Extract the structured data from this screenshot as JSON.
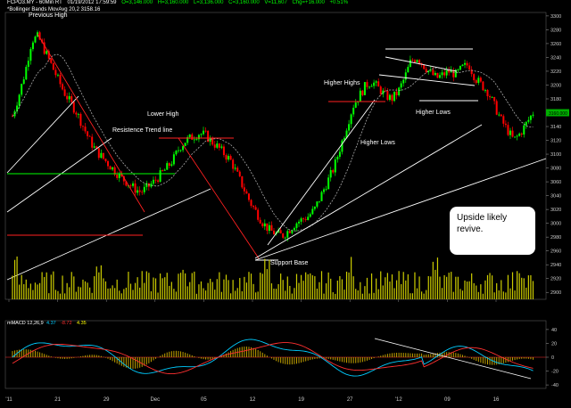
{
  "header": {
    "symbol": "FCPO3.MY - 60Min RT",
    "datetime": "01/19/2012  17:59:59",
    "open": "O=3,146.000",
    "high": "H=3,160.000",
    "low": "L=3,136.000",
    "close": "C=3,160.000",
    "volume": "V=11,607",
    "change": "Chg=+16.000",
    "change_pct": "+0.51%",
    "bollinger": "*Bollinger Bands  MovAvg 20,2  3158.16",
    "previous_high_label": "Previous High"
  },
  "annotations": {
    "lower_high": "Lower High",
    "resistance": "Resistence Trend line",
    "support_base": "Support Base",
    "higher_highs": "Higher Highs",
    "higher_lows_1": "Higher Lows",
    "higher_lows_2": "Higher Lows",
    "note": "Upside likely revive."
  },
  "macd_header": {
    "label": "mMACD 12,26,9",
    "v1": "4.37",
    "v2": "-8.72",
    "v3": "4.35"
  },
  "colors": {
    "up": "#00ff00",
    "down": "#ff0000",
    "trend_line": "#ffffff",
    "resistance_line": "#ff2020",
    "support_line": "#00ff00",
    "volume": "#cccc00",
    "macd_line": "#00ccff",
    "signal_line": "#ff3030"
  },
  "chart_data": [
    {
      "type": "candlestick",
      "y_ticks": [
        2900,
        2920,
        2940,
        2960,
        2980,
        3000,
        3020,
        3040,
        3060,
        3080,
        3100,
        3120,
        3140,
        3160,
        3180,
        3200,
        3220,
        3240,
        3260,
        3280,
        3300
      ],
      "ylim": [
        2890,
        3305
      ],
      "x_ticks": [
        "'11",
        "21",
        "29",
        "Dec",
        "05",
        "12",
        "19",
        "27",
        "'12",
        "09",
        "16"
      ],
      "last_price": 3160,
      "price_path": [
        3155,
        3185,
        3220,
        3265,
        3270,
        3250,
        3230,
        3210,
        3190,
        3175,
        3160,
        3140,
        3120,
        3105,
        3095,
        3085,
        3075,
        3065,
        3058,
        3050,
        3045,
        3052,
        3060,
        3070,
        3080,
        3092,
        3110,
        3120,
        3125,
        3130,
        3128,
        3118,
        3110,
        3100,
        3090,
        3070,
        3050,
        3030,
        3015,
        3000,
        2990,
        2985,
        2982,
        2990,
        3000,
        3005,
        3010,
        3020,
        3040,
        3060,
        3080,
        3110,
        3140,
        3170,
        3185,
        3200,
        3205,
        3195,
        3185,
        3180,
        3190,
        3210,
        3235,
        3240,
        3228,
        3218,
        3210,
        3215,
        3220,
        3215,
        3225,
        3230,
        3210,
        3200,
        3190,
        3170,
        3150,
        3135,
        3120,
        3130,
        3145,
        3160
      ]
    },
    {
      "type": "bar",
      "name": "volume",
      "y_ticks": [
        2900
      ]
    },
    {
      "type": "line",
      "name": "MACD",
      "y_ticks": [
        40,
        20,
        0,
        -20,
        -40
      ],
      "ylim": [
        -45,
        45
      ]
    }
  ]
}
